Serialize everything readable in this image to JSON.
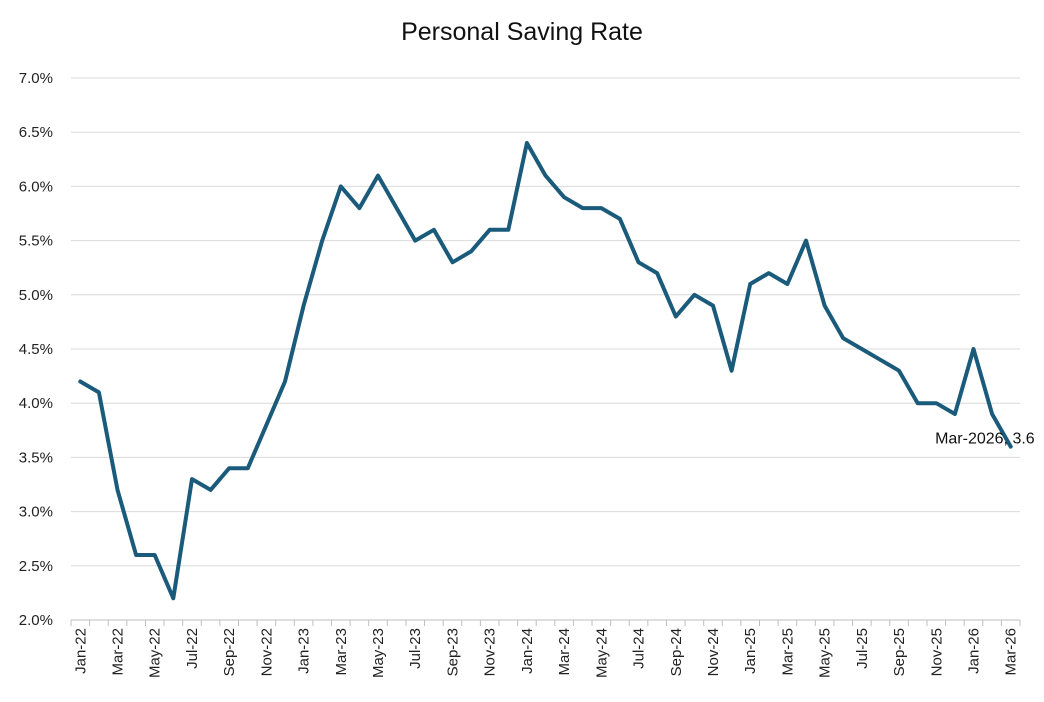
{
  "chart_data": {
    "type": "line",
    "title": "Personal Saving Rate",
    "xlabel": "",
    "ylabel": "",
    "ylim": [
      2.0,
      7.0
    ],
    "y_ticks": [
      "2.0%",
      "2.5%",
      "3.0%",
      "3.5%",
      "4.0%",
      "4.5%",
      "5.0%",
      "5.5%",
      "6.0%",
      "6.5%",
      "7.0%"
    ],
    "x_tick_labels": [
      "Jan-22",
      "Mar-22",
      "May-22",
      "Jul-22",
      "Sep-22",
      "Nov-22",
      "Jan-23",
      "Mar-23",
      "May-23",
      "Jul-23",
      "Sep-23",
      "Nov-23",
      "Jan-24",
      "Mar-24",
      "May-24",
      "Jul-24",
      "Sep-24",
      "Nov-24",
      "Jan-25",
      "Mar-25",
      "May-25",
      "Jul-25",
      "Sep-25",
      "Nov-25",
      "Jan-26",
      "Mar-26"
    ],
    "x": [
      "Jan-22",
      "Feb-22",
      "Mar-22",
      "Apr-22",
      "May-22",
      "Jun-22",
      "Jul-22",
      "Aug-22",
      "Sep-22",
      "Oct-22",
      "Nov-22",
      "Dec-22",
      "Jan-23",
      "Feb-23",
      "Mar-23",
      "Apr-23",
      "May-23",
      "Jun-23",
      "Jul-23",
      "Aug-23",
      "Sep-23",
      "Oct-23",
      "Nov-23",
      "Dec-23",
      "Jan-24",
      "Feb-24",
      "Mar-24",
      "Apr-24",
      "May-24",
      "Jun-24",
      "Jul-24",
      "Aug-24",
      "Sep-24",
      "Oct-24",
      "Nov-24",
      "Dec-24",
      "Jan-25",
      "Feb-25",
      "Mar-25",
      "Apr-25",
      "May-25",
      "Jun-25",
      "Jul-25",
      "Aug-25",
      "Sep-25",
      "Oct-25",
      "Nov-25",
      "Dec-25",
      "Jan-26",
      "Feb-26",
      "Mar-26"
    ],
    "series": [
      {
        "color": "#1a5a7a",
        "values": [
          4.2,
          4.1,
          3.2,
          2.6,
          2.6,
          2.2,
          3.3,
          3.2,
          3.4,
          3.4,
          3.8,
          4.2,
          4.9,
          5.5,
          6.0,
          5.8,
          6.1,
          5.8,
          5.5,
          5.6,
          5.3,
          5.4,
          5.6,
          5.6,
          6.4,
          6.1,
          5.9,
          5.8,
          5.8,
          5.7,
          5.3,
          5.2,
          4.8,
          5.0,
          4.9,
          4.3,
          5.1,
          5.2,
          5.1,
          5.5,
          4.9,
          4.6,
          4.5,
          4.4,
          4.3,
          4.0,
          4.0,
          3.9,
          4.5,
          3.9,
          3.6
        ]
      }
    ],
    "annotations": [
      {
        "text": "Mar-2026, 3.6",
        "x": "Mar-26",
        "y": 3.6
      }
    ],
    "grid": true,
    "legend": "none"
  }
}
